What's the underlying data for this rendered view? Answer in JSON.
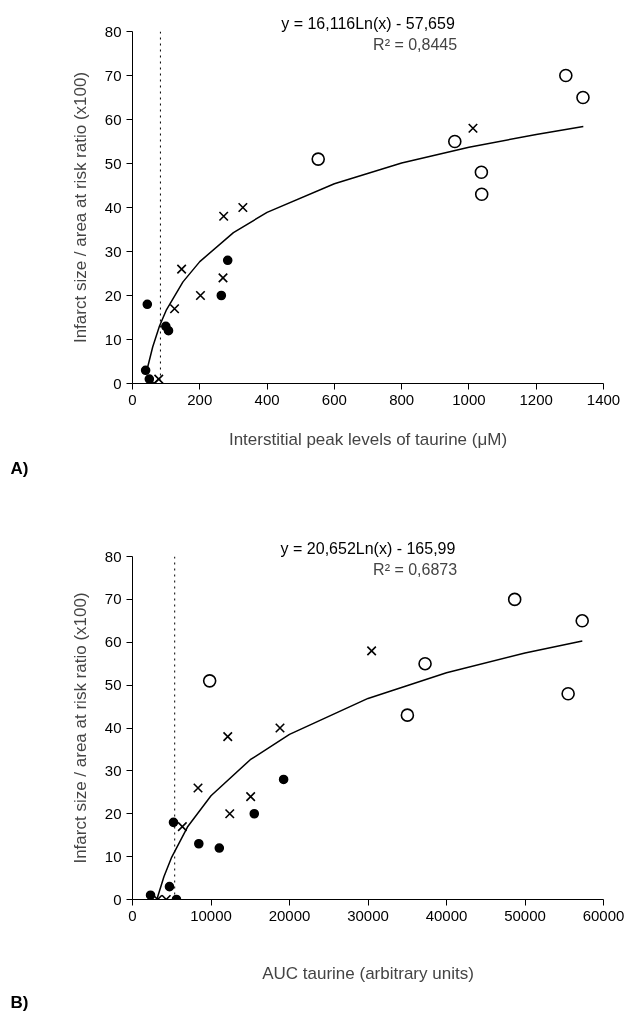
{
  "chart_data": [
    {
      "type": "scatter",
      "xlabel": "Interstitial peak levels of taurine (μM)",
      "ylabel": "Infarct size / area at risk ratio (x100)",
      "annotations": [
        "A)",
        "y = 16,116Ln(x) - 57,659",
        "R² = 0,8445"
      ],
      "xlim": [
        0,
        1400
      ],
      "ylim": [
        0,
        80
      ],
      "xticks": [
        0,
        200,
        400,
        600,
        800,
        1000,
        1200,
        1400
      ],
      "yticks": [
        0,
        10,
        20,
        30,
        40,
        50,
        60,
        70,
        80
      ],
      "grid": false,
      "ref_lines": [
        {
          "axis": "x",
          "value": 83,
          "color": "#000000",
          "line_style": "dotted"
        }
      ],
      "series": [
        {
          "marker": "circle",
          "color": "#000000",
          "x": [
            44,
            39,
            99,
            107,
            264,
            283,
            50
          ],
          "values": [
            18,
            3,
            13,
            12,
            20,
            28,
            1
          ]
        },
        {
          "marker": "cross",
          "color": "#000000",
          "x": [
            125,
            146,
            202,
            269,
            271,
            328,
            1012,
            64,
            78
          ],
          "values": [
            17,
            26,
            20,
            24,
            38,
            40,
            58,
            0,
            1
          ]
        },
        {
          "marker": "circle_open",
          "color": "#000000",
          "x": [
            552,
            958,
            1037,
            1038,
            1288,
            1339
          ],
          "values": [
            51,
            55,
            48,
            43,
            70,
            65
          ]
        },
        {
          "type": "line",
          "marker": "none",
          "color": "#000000",
          "x": [
            45,
            60,
            80,
            100,
            150,
            200,
            300,
            400,
            600,
            800,
            1000,
            1200,
            1340
          ],
          "values": [
            3.7,
            8.3,
            13.0,
            16.6,
            23.1,
            27.7,
            34.3,
            38.9,
            45.4,
            50.1,
            53.7,
            56.6,
            58.4
          ]
        }
      ]
    },
    {
      "type": "scatter",
      "xlabel": "AUC taurine (arbitrary units)",
      "ylabel": "Infarct size / area at risk ratio (x100)",
      "annotations": [
        "B)",
        "y = 20,652Ln(x) - 165,99",
        "R² = 0,6873"
      ],
      "xlim": [
        0,
        60000
      ],
      "ylim": [
        0,
        80
      ],
      "xticks": [
        0,
        10000,
        20000,
        30000,
        40000,
        50000,
        60000
      ],
      "yticks": [
        0,
        10,
        20,
        30,
        40,
        50,
        60,
        70,
        80
      ],
      "grid": false,
      "ref_lines": [
        {
          "axis": "x",
          "value": 5375,
          "color": "#000000",
          "line_style": "dotted"
        }
      ],
      "series": [
        {
          "marker": "circle",
          "color": "#000000",
          "x": [
            5222,
            4710,
            8447,
            11058,
            15512,
            19249,
            2300,
            5600
          ],
          "values": [
            18,
            3,
            13,
            12,
            20,
            28,
            1,
            0
          ]
        },
        {
          "marker": "cross",
          "color": "#000000",
          "x": [
            6348,
            8345,
            12133,
            12389,
            15051,
            18789,
            30461,
            3200,
            4300
          ],
          "values": [
            17,
            26,
            38,
            20,
            24,
            40,
            58,
            0,
            0
          ]
        },
        {
          "marker": "circle_open",
          "color": "#000000",
          "x": [
            9829,
            35017,
            37270,
            48686,
            55495,
            57287
          ],
          "values": [
            51,
            43,
            55,
            70,
            48,
            65
          ]
        },
        {
          "type": "line",
          "marker": "none",
          "color": "#000000",
          "x": [
            3100,
            4000,
            5000,
            7000,
            10000,
            15000,
            20000,
            30000,
            40000,
            50000,
            57300
          ],
          "values": [
            0.0,
            5.3,
            9.9,
            16.9,
            24.2,
            32.6,
            38.5,
            46.9,
            52.9,
            57.5,
            60.3
          ]
        }
      ]
    }
  ]
}
